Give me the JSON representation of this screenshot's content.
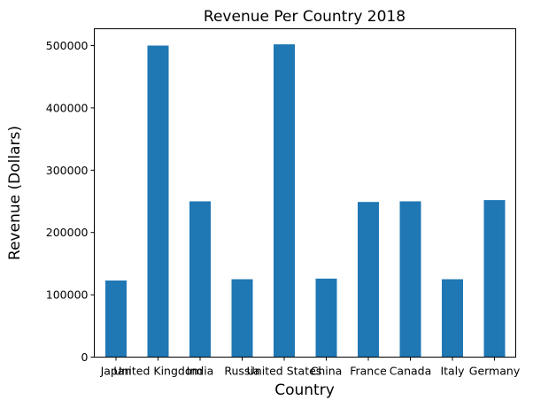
{
  "chart_data": {
    "type": "bar",
    "title": "Revenue Per Country 2018",
    "xlabel": "Country",
    "ylabel": "Revenue (Dollars)",
    "categories": [
      "Japan",
      "United Kingdom",
      "India",
      "Russia",
      "United States",
      "China",
      "France",
      "Canada",
      "Italy",
      "Germany"
    ],
    "values": [
      123000,
      500000,
      250000,
      125000,
      502000,
      126000,
      249000,
      250000,
      125000,
      252000
    ],
    "yticks": [
      0,
      100000,
      200000,
      300000,
      400000,
      500000
    ],
    "ylim": [
      0,
      527000
    ],
    "grid": false,
    "bar_color": "#1f77b4"
  }
}
